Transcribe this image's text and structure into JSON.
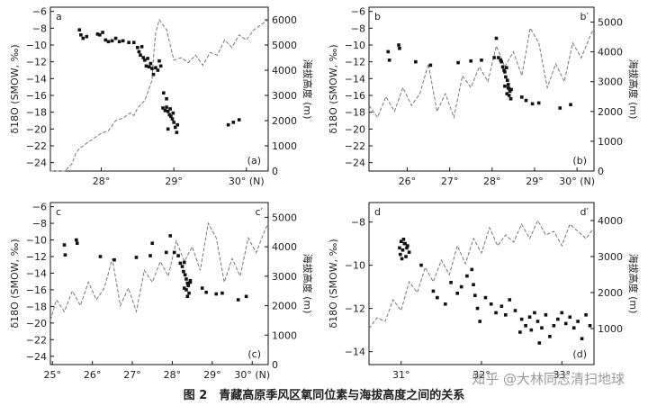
{
  "figure": {
    "caption": "图 2　青藏高原季风区氧同位素与海拔高度之间的关系",
    "watermark": "知乎 @大林同志清扫地球"
  },
  "chart_data": [
    {
      "type": "scatter",
      "panel_label": "a",
      "panel_label_right": "",
      "panel_code": "(a)",
      "ylabel": "δ18O (SMOW, ‰)",
      "ylabel2": "海拔高度 (m)",
      "xlim": [
        27.3,
        30.3
      ],
      "ylim": [
        -25,
        -5.5
      ],
      "y2lim": [
        0,
        6500
      ],
      "x_ticks": [
        28,
        29,
        30
      ],
      "x_tick_labels": [
        "28°",
        "29°",
        "30° (N)"
      ],
      "y_ticks": [
        -24,
        -22,
        -20,
        -18,
        -16,
        -14,
        -12,
        -10,
        -8,
        -6
      ],
      "y2_ticks": [
        0,
        1000,
        2000,
        3000,
        4000,
        5000,
        6000
      ],
      "series": [
        {
          "kind": "elevation",
          "x": [
            27.3,
            27.5,
            27.6,
            27.65,
            27.7,
            27.8,
            27.9,
            28.0,
            28.1,
            28.15,
            28.2,
            28.3,
            28.4,
            28.45,
            28.5,
            28.6,
            28.65,
            28.7,
            28.72,
            28.75,
            28.8,
            28.85,
            28.9,
            28.95,
            29.0,
            29.1,
            29.2,
            29.3,
            29.4,
            29.5,
            29.6,
            29.7,
            29.8,
            29.9,
            30.0,
            30.1,
            30.2,
            30.3
          ],
          "y": [
            0,
            0,
            300,
            700,
            900,
            1100,
            1300,
            1500,
            1600,
            1800,
            2000,
            2100,
            2300,
            2200,
            2500,
            2800,
            3200,
            3600,
            4500,
            5500,
            6000,
            5800,
            5600,
            5000,
            4400,
            4500,
            4300,
            4600,
            4200,
            4700,
            4600,
            5200,
            4900,
            5400,
            5200,
            5600,
            5800,
            6000
          ]
        },
        {
          "kind": "points",
          "x": [
            27.7,
            27.72,
            27.75,
            27.8,
            27.95,
            27.98,
            28.02,
            28.06,
            28.1,
            28.15,
            28.2,
            28.25,
            28.3,
            28.38,
            28.45,
            28.5,
            28.52,
            28.54,
            28.56,
            28.58,
            28.6,
            28.62,
            28.64,
            28.66,
            28.68,
            28.7,
            28.72,
            28.75,
            28.78,
            28.8,
            28.82,
            28.85,
            28.88,
            28.9,
            28.92,
            28.94,
            28.96,
            28.98,
            29.0,
            29.02,
            29.04,
            28.86,
            28.9,
            28.95,
            28.99,
            29.05,
            28.92,
            29.75,
            29.82,
            29.9
          ],
          "y": [
            -8.2,
            -8.8,
            -9.2,
            -9.0,
            -8.7,
            -8.8,
            -8.5,
            -9.4,
            -9.6,
            -9.5,
            -9.2,
            -9.6,
            -9.5,
            -9.7,
            -9.7,
            -10.3,
            -10.8,
            -11.2,
            -10.2,
            -11.5,
            -11.8,
            -12.5,
            -11.6,
            -12.6,
            -12.2,
            -12.8,
            -13.5,
            -12.7,
            -13.0,
            -11.9,
            -12.5,
            -17.5,
            -17.8,
            -17.4,
            -17.9,
            -18.3,
            -18.5,
            -18.8,
            -19.2,
            -19.8,
            -20.4,
            -15.7,
            -16.4,
            -17.6,
            -18.1,
            -19.5,
            -20.0,
            -19.5,
            -19.2,
            -18.9
          ]
        }
      ]
    },
    {
      "type": "scatter",
      "panel_label": "b",
      "panel_label_right": "b′",
      "panel_code": "(b)",
      "ylabel": "δ18O (SMOW, ‰)",
      "ylabel2": "海拔高度 (m)",
      "xlim": [
        25.1,
        30.4
      ],
      "ylim": [
        -25,
        -5.5
      ],
      "y2lim": [
        0,
        5500
      ],
      "x_ticks": [
        26,
        27,
        28,
        29,
        30
      ],
      "x_tick_labels": [
        "26°",
        "27°",
        "28°",
        "29°",
        "30° (N)"
      ],
      "y_ticks": [
        -24,
        -22,
        -20,
        -18,
        -16,
        -14,
        -12,
        -10,
        -8,
        -6
      ],
      "y2_ticks": [
        0,
        1000,
        2000,
        3000,
        4000,
        5000
      ],
      "series": [
        {
          "kind": "elevation",
          "x": [
            25.1,
            25.3,
            25.5,
            25.7,
            25.9,
            26.1,
            26.3,
            26.5,
            26.7,
            26.9,
            27.1,
            27.3,
            27.5,
            27.7,
            27.9,
            28.1,
            28.3,
            28.5,
            28.7,
            28.9,
            29.1,
            29.3,
            29.5,
            29.7,
            29.9,
            30.1,
            30.3,
            30.4
          ],
          "y": [
            2200,
            1800,
            2500,
            2000,
            2800,
            2200,
            2600,
            3600,
            2000,
            2600,
            1800,
            3200,
            2800,
            3500,
            3000,
            4200,
            3500,
            4000,
            3200,
            4800,
            4300,
            2800,
            3600,
            3000,
            4300,
            3800,
            4500,
            4800
          ]
        },
        {
          "kind": "points",
          "x": [
            25.55,
            25.58,
            25.8,
            25.82,
            26.2,
            26.55,
            27.2,
            27.5,
            27.75,
            28.05,
            28.1,
            28.15,
            28.2,
            28.22,
            28.25,
            28.28,
            28.3,
            28.32,
            28.34,
            28.36,
            28.38,
            28.4,
            28.42,
            28.44,
            28.3,
            28.35,
            28.4,
            28.45,
            28.38,
            28.7,
            28.8,
            28.95,
            29.1,
            29.6,
            29.85
          ],
          "y": [
            -10.8,
            -11.8,
            -10.0,
            -10.4,
            -12.0,
            -12.4,
            -12.1,
            -11.9,
            -11.8,
            -11.5,
            -9.2,
            -11.5,
            -11.8,
            -12.0,
            -12.6,
            -13.0,
            -13.2,
            -13.8,
            -12.7,
            -14.2,
            -14.7,
            -15.2,
            -15.5,
            -16.4,
            -14.9,
            -15.8,
            -16.0,
            -15.3,
            -15.1,
            -16.2,
            -16.6,
            -17.0,
            -16.9,
            -17.5,
            -17.1
          ]
        }
      ]
    },
    {
      "type": "scatter",
      "panel_label": "c",
      "panel_label_right": "c′",
      "panel_code": "(c)",
      "ylabel": "δ18O (SMOW, ‰)",
      "ylabel2": "海拔高度 (m)",
      "xlim": [
        24.95,
        30.4
      ],
      "ylim": [
        -25,
        -5.5
      ],
      "y2lim": [
        0,
        5500
      ],
      "x_ticks": [
        25,
        26,
        27,
        28,
        29,
        30
      ],
      "x_tick_labels": [
        "25°",
        "26°",
        "27°",
        "28°",
        "29°",
        "30° (N)"
      ],
      "y_ticks": [
        -24,
        -22,
        -20,
        -18,
        -16,
        -14,
        -12,
        -10,
        -8,
        -6
      ],
      "y2_ticks": [
        0,
        1000,
        2000,
        3000,
        4000,
        5000
      ],
      "series": [
        {
          "kind": "elevation",
          "x": [
            24.95,
            25.1,
            25.3,
            25.5,
            25.7,
            25.9,
            26.1,
            26.3,
            26.5,
            26.7,
            26.9,
            27.1,
            27.3,
            27.5,
            27.7,
            27.9,
            28.1,
            28.3,
            28.5,
            28.7,
            28.9,
            29.1,
            29.3,
            29.5,
            29.7,
            29.9,
            30.1,
            30.3,
            30.4
          ],
          "y": [
            1500,
            2200,
            1800,
            2500,
            2000,
            2800,
            2200,
            2600,
            3600,
            2000,
            2600,
            1800,
            3200,
            2800,
            3500,
            3000,
            4200,
            3500,
            4000,
            3200,
            4800,
            4300,
            2800,
            3600,
            3000,
            4300,
            3800,
            4500,
            4800
          ]
        },
        {
          "kind": "points",
          "x": [
            25.3,
            25.32,
            25.6,
            25.62,
            26.2,
            26.55,
            27.1,
            27.45,
            27.5,
            27.85,
            27.95,
            28.05,
            28.15,
            28.2,
            28.25,
            28.28,
            28.3,
            28.32,
            28.35,
            28.38,
            28.4,
            28.42,
            28.45,
            28.3,
            28.35,
            28.4,
            28.45,
            28.38,
            28.75,
            28.85,
            29.1,
            29.25,
            29.65,
            29.85
          ],
          "y": [
            -10.6,
            -11.8,
            -10.0,
            -10.4,
            -12.0,
            -12.4,
            -12.1,
            -11.9,
            -10.4,
            -11.5,
            -9.5,
            -11.5,
            -11.9,
            -12.8,
            -13.2,
            -13.8,
            -12.7,
            -14.2,
            -14.7,
            -15.2,
            -15.5,
            -16.4,
            -14.9,
            -15.8,
            -16.0,
            -15.3,
            -15.1,
            -16.8,
            -15.8,
            -16.3,
            -16.5,
            -16.4,
            -17.2,
            -16.8
          ]
        }
      ]
    },
    {
      "type": "scatter",
      "panel_label": "d",
      "panel_label_right": "d′",
      "panel_code": "(d)",
      "ylabel": "δ18O (SMOW, ‰)",
      "ylabel2": "海拔高度 (m)",
      "xlim": [
        30.6,
        33.4
      ],
      "ylim": [
        -14.6,
        -7.1
      ],
      "y2lim": [
        0,
        4500
      ],
      "x_ticks": [
        31,
        32,
        33
      ],
      "x_tick_labels": [
        "31°",
        "32°",
        "33°"
      ],
      "y_ticks": [
        -14,
        -12,
        -10,
        -8
      ],
      "y2_ticks": [
        1000,
        2000,
        3000,
        4000
      ],
      "series": [
        {
          "kind": "elevation",
          "x": [
            30.6,
            30.7,
            30.8,
            30.9,
            31.0,
            31.1,
            31.2,
            31.3,
            31.4,
            31.5,
            31.6,
            31.7,
            31.8,
            31.9,
            32.0,
            32.1,
            32.2,
            32.3,
            32.4,
            32.5,
            32.6,
            32.7,
            32.8,
            32.9,
            33.0,
            33.1,
            33.2,
            33.3,
            33.4
          ],
          "y": [
            1000,
            1300,
            1200,
            1800,
            1500,
            2300,
            2000,
            2700,
            2300,
            2900,
            2500,
            3300,
            2800,
            3500,
            3100,
            3800,
            3300,
            3600,
            3400,
            3900,
            3500,
            4000,
            3600,
            3700,
            3300,
            3900,
            3700,
            3500,
            3800
          ]
        },
        {
          "kind": "points",
          "x": [
            30.98,
            31.0,
            31.02,
            31.04,
            31.06,
            31.08,
            31.1,
            30.99,
            31.03,
            31.07,
            31.01,
            31.05,
            31.25,
            31.4,
            31.45,
            31.55,
            31.62,
            31.7,
            31.75,
            31.82,
            31.88,
            31.9,
            31.92,
            31.95,
            31.98,
            32.05,
            32.12,
            32.18,
            32.25,
            32.3,
            32.35,
            32.42,
            32.5,
            32.55,
            32.6,
            32.62,
            32.66,
            32.7,
            32.75,
            32.8,
            32.85,
            32.9,
            32.95,
            33.0,
            33.05,
            33.1,
            33.15,
            33.2,
            33.25,
            33.3,
            33.35,
            32.48,
            32.72
          ],
          "y": [
            -9.2,
            -8.9,
            -9.3,
            -9.0,
            -9.6,
            -9.1,
            -9.4,
            -9.5,
            -8.8,
            -9.2,
            -9.7,
            -9.0,
            -10.0,
            -11.2,
            -11.5,
            -11.8,
            -10.8,
            -11.3,
            -11.0,
            -10.5,
            -10.2,
            -10.9,
            -11.4,
            -12.0,
            -12.6,
            -11.5,
            -11.8,
            -12.2,
            -11.9,
            -12.3,
            -11.6,
            -12.1,
            -12.5,
            -12.8,
            -12.4,
            -13.0,
            -12.2,
            -12.6,
            -12.9,
            -12.3,
            -13.3,
            -12.8,
            -12.5,
            -12.2,
            -12.7,
            -12.4,
            -12.9,
            -12.6,
            -13.4,
            -12.3,
            -12.8,
            -13.1,
            -13.6
          ]
        }
      ]
    }
  ]
}
